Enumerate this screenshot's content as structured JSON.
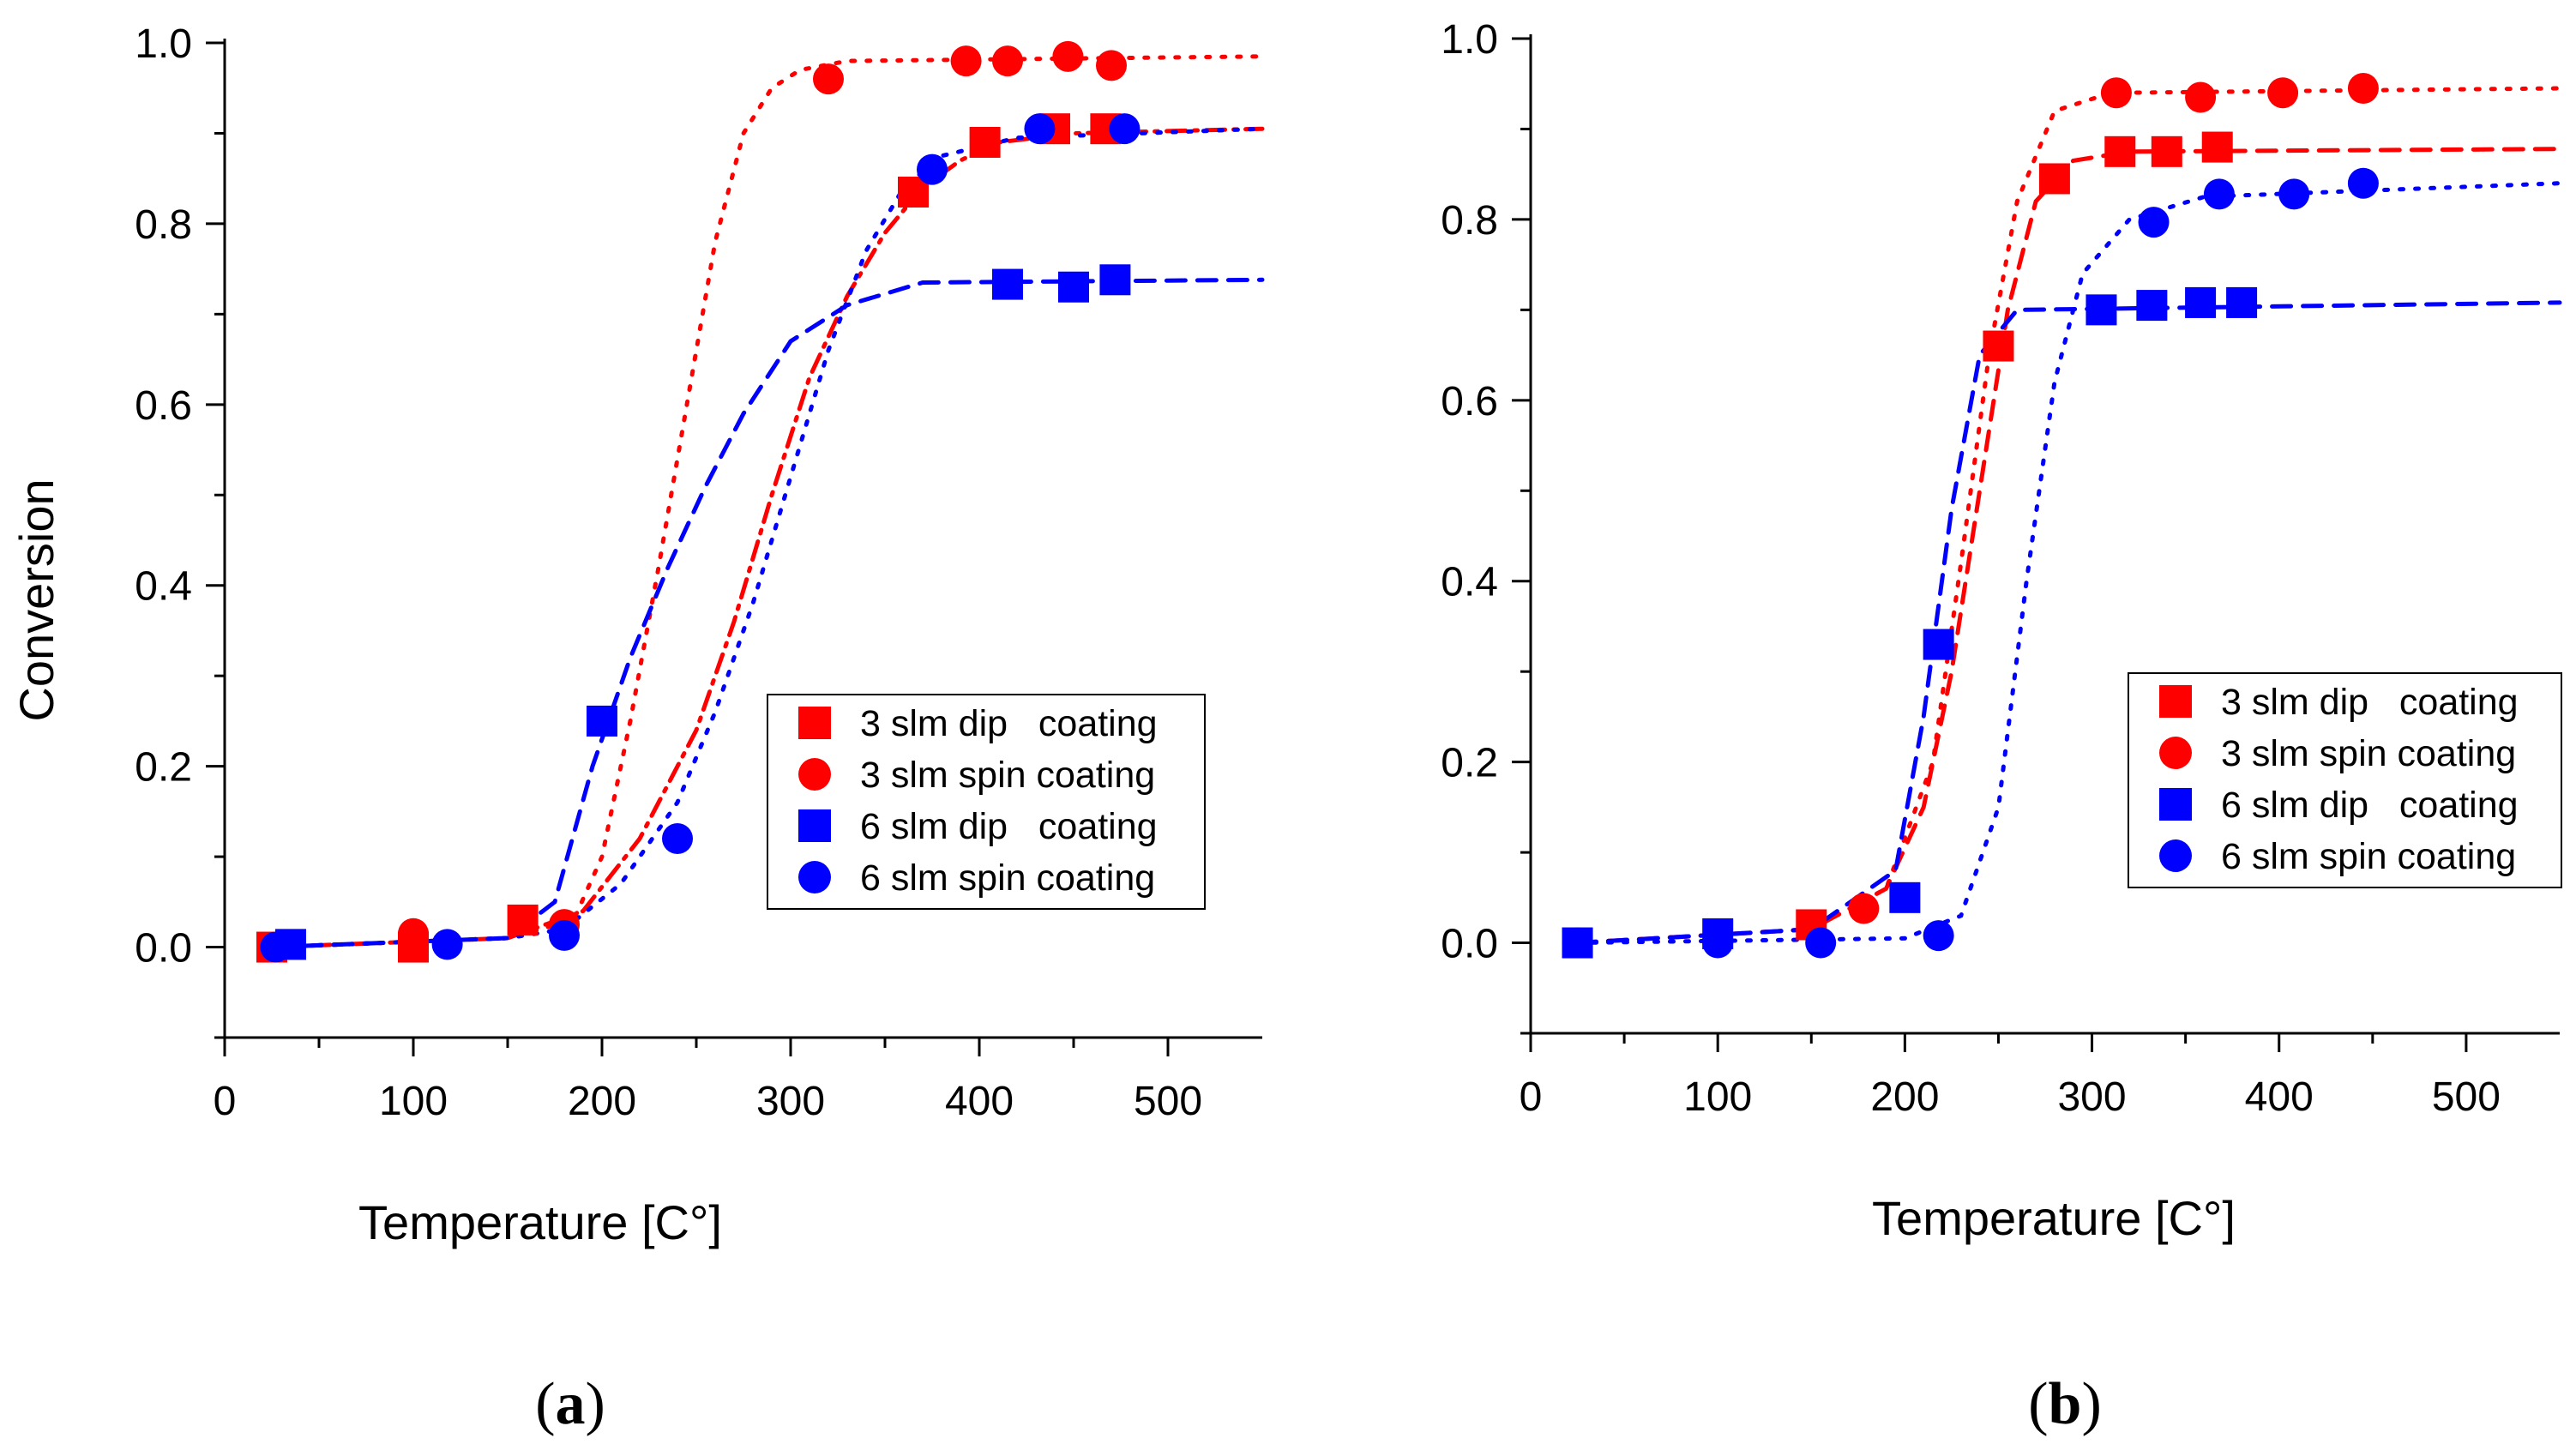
{
  "chart_data": [
    {
      "type": "scatter",
      "panel_label": "(a)",
      "xlabel": "Temperature [C°]",
      "ylabel": "Conversion",
      "xlim": [
        0,
        550
      ],
      "ylim": [
        -0.1,
        1.0
      ],
      "xticks": [
        0,
        100,
        200,
        300,
        400,
        500
      ],
      "yticks": [
        0.0,
        0.2,
        0.4,
        0.6,
        0.8,
        1.0
      ],
      "xtick_labels": [
        "0",
        "100",
        "200",
        "300",
        "400",
        "500"
      ],
      "ytick_labels": [
        "0.0",
        "0.2",
        "0.4",
        "0.6",
        "0.8",
        "1.0"
      ],
      "legend_position": "lower-right",
      "series": [
        {
          "name": "3 slm dip   coating",
          "color": "#ff0000",
          "marker": "square",
          "line": "dashdot",
          "points": [
            [
              25,
              0.0
            ],
            [
              100,
              0.0
            ],
            [
              158,
              0.03
            ],
            [
              365,
              0.835
            ],
            [
              403,
              0.89
            ],
            [
              440,
              0.905
            ],
            [
              467,
              0.905
            ]
          ],
          "fit": [
            [
              25,
              0.0
            ],
            [
              150,
              0.01
            ],
            [
              190,
              0.04
            ],
            [
              220,
              0.12
            ],
            [
              250,
              0.24
            ],
            [
              270,
              0.36
            ],
            [
              290,
              0.5
            ],
            [
              310,
              0.63
            ],
            [
              330,
              0.72
            ],
            [
              350,
              0.79
            ],
            [
              370,
              0.84
            ],
            [
              390,
              0.87
            ],
            [
              410,
              0.89
            ],
            [
              450,
              0.9
            ],
            [
              550,
              0.905
            ]
          ]
        },
        {
          "name": "3 slm spin coating",
          "color": "#ff0000",
          "marker": "circle",
          "line": "dotted",
          "points": [
            [
              100,
              0.015
            ],
            [
              180,
              0.025
            ],
            [
              320,
              0.96
            ],
            [
              393,
              0.98
            ],
            [
              415,
              0.98
            ],
            [
              447,
              0.985
            ],
            [
              470,
              0.975
            ]
          ],
          "fit": [
            [
              25,
              0.0
            ],
            [
              150,
              0.01
            ],
            [
              185,
              0.03
            ],
            [
              200,
              0.1
            ],
            [
              215,
              0.25
            ],
            [
              230,
              0.42
            ],
            [
              245,
              0.6
            ],
            [
              260,
              0.78
            ],
            [
              275,
              0.9
            ],
            [
              290,
              0.95
            ],
            [
              305,
              0.97
            ],
            [
              330,
              0.98
            ],
            [
              550,
              0.985
            ]
          ]
        },
        {
          "name": "6 slm dip   coating",
          "color": "#0000ff",
          "marker": "square",
          "line": "dashed",
          "points": [
            [
              35,
              0.003
            ],
            [
              200,
              0.25
            ],
            [
              415,
              0.733
            ],
            [
              450,
              0.73
            ],
            [
              472,
              0.738
            ]
          ],
          "fit": [
            [
              25,
              0.0
            ],
            [
              150,
              0.01
            ],
            [
              175,
              0.05
            ],
            [
              195,
              0.2
            ],
            [
              215,
              0.32
            ],
            [
              235,
              0.42
            ],
            [
              255,
              0.51
            ],
            [
              275,
              0.59
            ],
            [
              300,
              0.67
            ],
            [
              330,
              0.71
            ],
            [
              370,
              0.735
            ],
            [
              550,
              0.738
            ]
          ]
        },
        {
          "name": "6 slm spin coating",
          "color": "#0000ff",
          "marker": "circle",
          "line": "dotted",
          "points": [
            [
              27,
              0.0
            ],
            [
              118,
              0.003
            ],
            [
              180,
              0.013
            ],
            [
              240,
              0.12
            ],
            [
              375,
              0.86
            ],
            [
              432,
              0.905
            ],
            [
              477,
              0.905
            ]
          ],
          "fit": [
            [
              25,
              0.0
            ],
            [
              150,
              0.01
            ],
            [
              180,
              0.02
            ],
            [
              210,
              0.07
            ],
            [
              240,
              0.16
            ],
            [
              260,
              0.26
            ],
            [
              280,
              0.38
            ],
            [
              300,
              0.52
            ],
            [
              320,
              0.66
            ],
            [
              340,
              0.77
            ],
            [
              360,
              0.84
            ],
            [
              380,
              0.875
            ],
            [
              420,
              0.895
            ],
            [
              550,
              0.905
            ]
          ]
        }
      ]
    },
    {
      "type": "scatter",
      "panel_label": "(b)",
      "xlabel": "Temperature [C°]",
      "ylabel": "",
      "xlim": [
        0,
        550
      ],
      "ylim": [
        -0.1,
        1.0
      ],
      "xticks": [
        0,
        100,
        200,
        300,
        400,
        500
      ],
      "yticks": [
        0.0,
        0.2,
        0.4,
        0.6,
        0.8,
        1.0
      ],
      "xtick_labels": [
        "0",
        "100",
        "200",
        "300",
        "400",
        "500"
      ],
      "ytick_labels": [
        "0.0",
        "0.2",
        "0.4",
        "0.6",
        "0.8",
        "1.0"
      ],
      "legend_position": "lower-right",
      "series": [
        {
          "name": "3 slm dip   coating",
          "color": "#ff0000",
          "marker": "square",
          "line": "dashed",
          "points": [
            [
              150,
              0.02
            ],
            [
              250,
              0.66
            ],
            [
              280,
              0.845
            ],
            [
              315,
              0.875
            ],
            [
              340,
              0.875
            ],
            [
              367,
              0.88
            ]
          ],
          "fit": [
            [
              25,
              0.0
            ],
            [
              150,
              0.015
            ],
            [
              190,
              0.06
            ],
            [
              210,
              0.15
            ],
            [
              225,
              0.3
            ],
            [
              240,
              0.5
            ],
            [
              255,
              0.7
            ],
            [
              270,
              0.82
            ],
            [
              290,
              0.865
            ],
            [
              320,
              0.875
            ],
            [
              550,
              0.878
            ]
          ]
        },
        {
          "name": "3 slm spin coating",
          "color": "#ff0000",
          "marker": "circle",
          "line": "dotted",
          "points": [
            [
              178,
              0.038
            ],
            [
              313,
              0.94
            ],
            [
              358,
              0.935
            ],
            [
              402,
              0.94
            ],
            [
              445,
              0.945
            ]
          ],
          "fit": [
            [
              25,
              0.0
            ],
            [
              150,
              0.015
            ],
            [
              190,
              0.06
            ],
            [
              215,
              0.2
            ],
            [
              230,
              0.42
            ],
            [
              245,
              0.65
            ],
            [
              260,
              0.82
            ],
            [
              280,
              0.92
            ],
            [
              310,
              0.94
            ],
            [
              550,
              0.945
            ]
          ]
        },
        {
          "name": "6 slm dip   coating",
          "color": "#0000ff",
          "marker": "square",
          "line": "dashed",
          "points": [
            [
              25,
              0.0
            ],
            [
              100,
              0.01
            ],
            [
              200,
              0.05
            ],
            [
              218,
              0.33
            ],
            [
              305,
              0.7
            ],
            [
              332,
              0.705
            ],
            [
              358,
              0.708
            ],
            [
              380,
              0.708
            ]
          ],
          "fit": [
            [
              25,
              0.0
            ],
            [
              150,
              0.015
            ],
            [
              195,
              0.08
            ],
            [
              210,
              0.25
            ],
            [
              225,
              0.48
            ],
            [
              240,
              0.65
            ],
            [
              260,
              0.7
            ],
            [
              550,
              0.708
            ]
          ]
        },
        {
          "name": "6 slm spin coating",
          "color": "#0000ff",
          "marker": "circle",
          "line": "dotted",
          "points": [
            [
              25,
              0.0
            ],
            [
              100,
              0.0
            ],
            [
              155,
              0.0
            ],
            [
              218,
              0.008
            ],
            [
              333,
              0.797
            ],
            [
              368,
              0.828
            ],
            [
              408,
              0.828
            ],
            [
              445,
              0.84
            ]
          ],
          "fit": [
            [
              25,
              0.0
            ],
            [
              200,
              0.005
            ],
            [
              230,
              0.03
            ],
            [
              250,
              0.15
            ],
            [
              265,
              0.4
            ],
            [
              280,
              0.62
            ],
            [
              295,
              0.74
            ],
            [
              320,
              0.8
            ],
            [
              360,
              0.825
            ],
            [
              550,
              0.84
            ]
          ]
        }
      ]
    }
  ]
}
